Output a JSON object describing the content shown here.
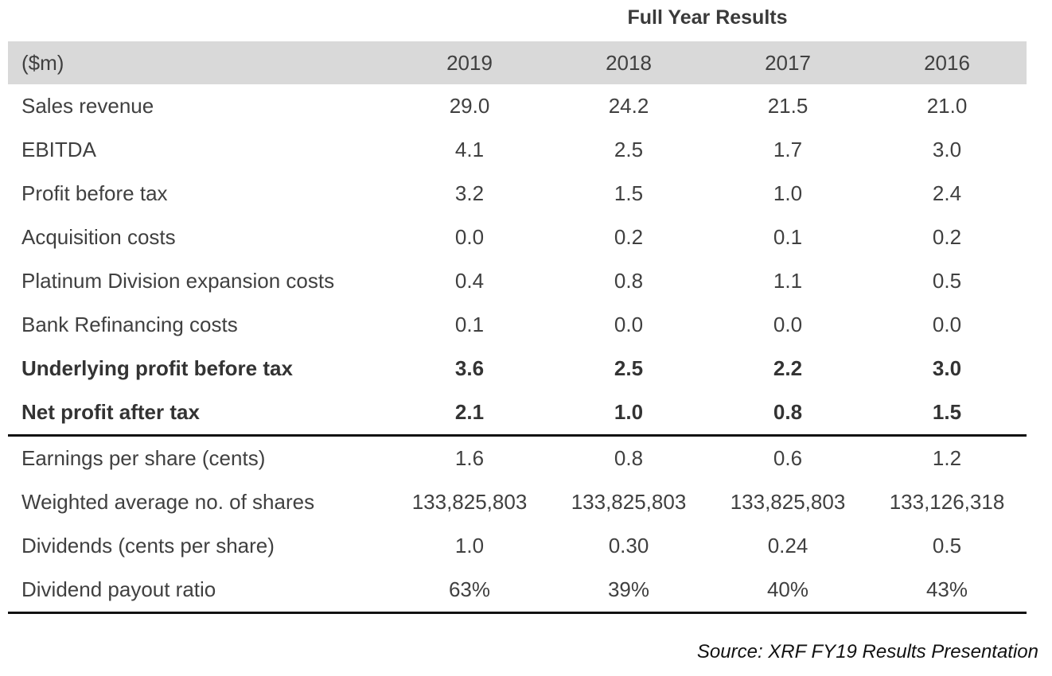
{
  "caption": "Full Year Results",
  "table": {
    "header_label": "($m)",
    "years": [
      "2019",
      "2018",
      "2017",
      "2016"
    ],
    "rows": [
      {
        "label": "Sales revenue",
        "values": [
          "29.0",
          "24.2",
          "21.5",
          "21.0"
        ],
        "bold": false
      },
      {
        "label": "EBITDA",
        "values": [
          "4.1",
          "2.5",
          "1.7",
          "3.0"
        ],
        "bold": false
      },
      {
        "label": "Profit before tax",
        "values": [
          "3.2",
          "1.5",
          "1.0",
          "2.4"
        ],
        "bold": false
      },
      {
        "label": "Acquisition costs",
        "values": [
          "0.0",
          "0.2",
          "0.1",
          "0.2"
        ],
        "bold": false
      },
      {
        "label": "Platinum Division expansion costs",
        "values": [
          "0.4",
          "0.8",
          "1.1",
          "0.5"
        ],
        "bold": false
      },
      {
        "label": "Bank Refinancing costs",
        "values": [
          "0.1",
          "0.0",
          "0.0",
          "0.0"
        ],
        "bold": false
      },
      {
        "label": "Underlying profit before tax",
        "values": [
          "3.6",
          "2.5",
          "2.2",
          "3.0"
        ],
        "bold": true
      },
      {
        "label": "Net profit after tax",
        "values": [
          "2.1",
          "1.0",
          "0.8",
          "1.5"
        ],
        "bold": true
      },
      {
        "label": "Earnings per share (cents)",
        "values": [
          "1.6",
          "0.8",
          "0.6",
          "1.2"
        ],
        "bold": false
      },
      {
        "label": "Weighted average no. of shares",
        "values": [
          "133,825,803",
          "133,825,803",
          "133,825,803",
          "133,126,318"
        ],
        "bold": false
      },
      {
        "label": "Dividends (cents per share)",
        "values": [
          "1.0",
          "0.30",
          "0.24",
          "0.5"
        ],
        "bold": false
      },
      {
        "label": "Dividend payout ratio",
        "values": [
          "63%",
          "39%",
          "40%",
          "43%"
        ],
        "bold": false
      }
    ]
  },
  "source": "Source: XRF FY19 Results Presentation"
}
